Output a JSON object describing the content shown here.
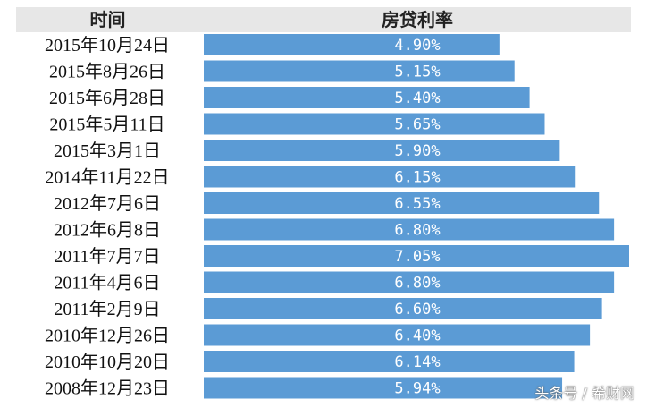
{
  "header": {
    "time_label": "时间",
    "rate_label": "房贷利率"
  },
  "watermark": "头条号 / 希财网",
  "colors": {
    "bar": "#5b9bd5",
    "header_band": "#e7e7e7",
    "value_text": "#ffffff"
  },
  "chart_data": {
    "type": "bar",
    "orientation": "horizontal",
    "categories": [
      "2015年10月24日",
      "2015年8月26日",
      "2015年6月28日",
      "2015年5月11日",
      "2015年3月1日",
      "2014年11月22日",
      "2012年7月6日",
      "2012年6月8日",
      "2011年7月7日",
      "2011年4月6日",
      "2011年2月9日",
      "2010年12月26日",
      "2010年10月20日",
      "2008年12月23日"
    ],
    "values": [
      4.9,
      5.15,
      5.4,
      5.65,
      5.9,
      6.15,
      6.55,
      6.8,
      7.05,
      6.8,
      6.6,
      6.4,
      6.14,
      5.94
    ],
    "value_labels": [
      "4.90%",
      "5.15%",
      "5.40%",
      "5.65%",
      "5.90%",
      "6.15%",
      "6.55%",
      "6.80%",
      "7.05%",
      "6.80%",
      "6.60%",
      "6.40%",
      "6.14%",
      "5.94%"
    ],
    "title": "",
    "xlabel": "",
    "ylabel": "",
    "xlim": [
      0,
      7.05
    ],
    "grid": false,
    "legend": "none"
  }
}
